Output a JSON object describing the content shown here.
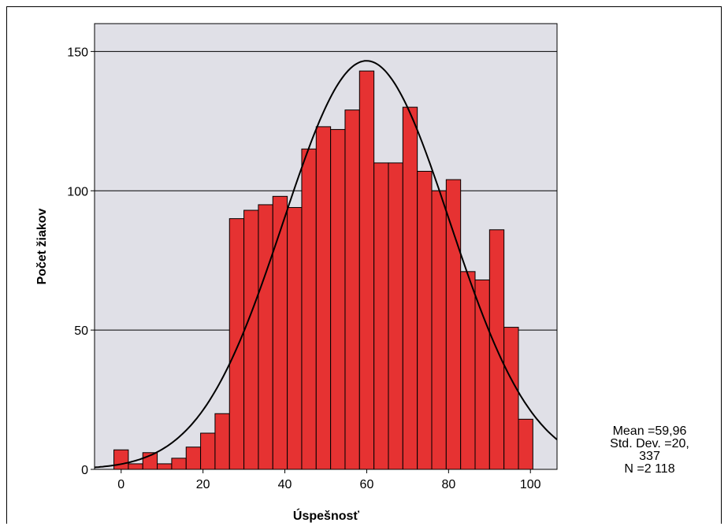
{
  "chart_data": {
    "type": "bar",
    "subtype": "histogram with fitted normal curve",
    "xlabel": "Úspešnosť",
    "ylabel": "Počet žiakov",
    "xlim": [
      -6.5,
      106.5
    ],
    "ylim": [
      0,
      160
    ],
    "x_ticks": [
      0,
      20,
      40,
      60,
      80,
      100
    ],
    "y_ticks": [
      0,
      50,
      100,
      150
    ],
    "bin_width": 3.53,
    "x_start": -1.77,
    "values": [
      7,
      2,
      6,
      2,
      4,
      8,
      13,
      20,
      90,
      93,
      95,
      98,
      94,
      115,
      123,
      122,
      129,
      143,
      110,
      110,
      130,
      107,
      100,
      104,
      71,
      68,
      86,
      51,
      18
    ],
    "normal_curve": {
      "mean": 59.96,
      "sd": 20.337,
      "n": 2118
    },
    "grid": "horizontal",
    "colors": {
      "bar_fill": "#e63232",
      "bar_edge": "#000000",
      "plot_bg": "#e0e0e7",
      "curve": "#000000"
    }
  },
  "stats": {
    "mean_line": "Mean =59,96",
    "sd_line_1": "Std. Dev. =20,",
    "sd_line_2": "337",
    "n_line": "N =2 118"
  }
}
